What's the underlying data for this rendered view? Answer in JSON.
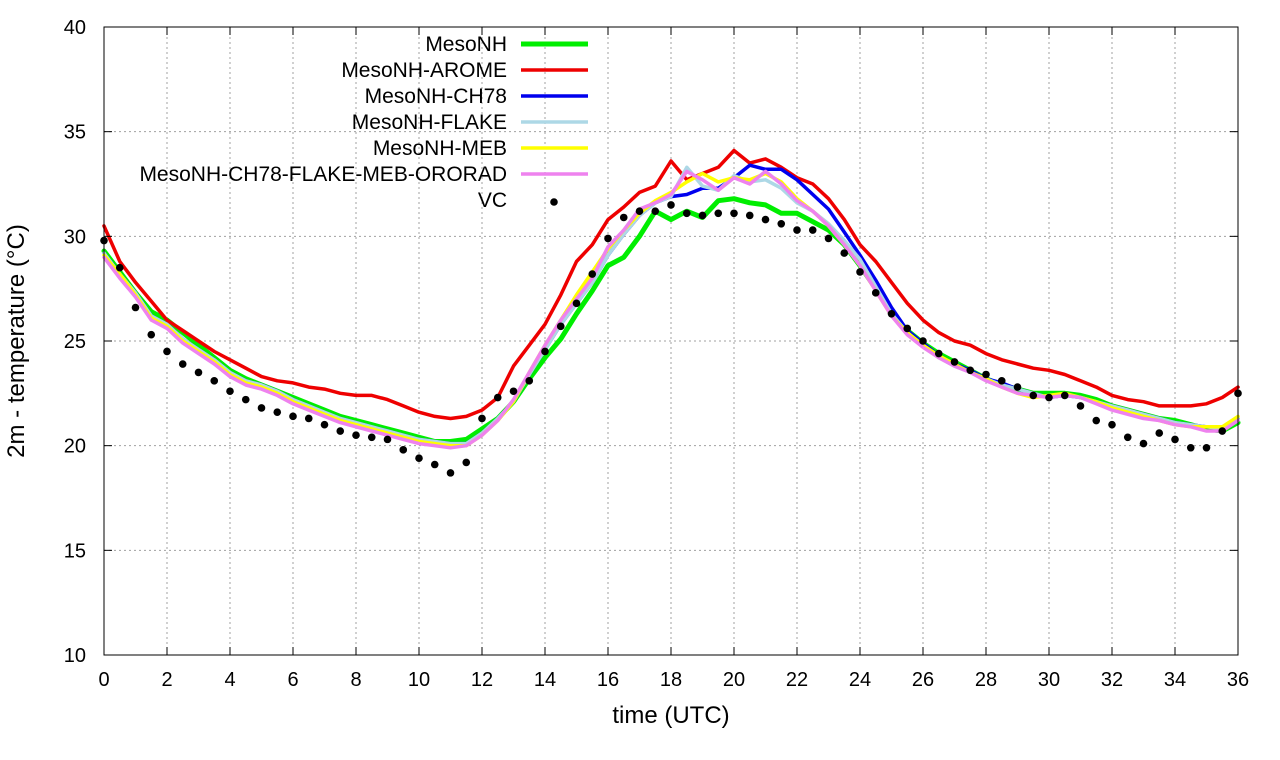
{
  "chart_data": {
    "type": "line",
    "xlabel": "time (UTC)",
    "ylabel": "2m - temperature (°C)",
    "xlim": [
      0,
      36
    ],
    "ylim": [
      10,
      40
    ],
    "xticks": [
      0,
      2,
      4,
      6,
      8,
      10,
      12,
      14,
      16,
      18,
      20,
      22,
      24,
      26,
      28,
      30,
      32,
      34,
      36
    ],
    "yticks": [
      10,
      15,
      20,
      25,
      30,
      35,
      40
    ],
    "grid": true,
    "legend_position": "top-left",
    "series": [
      {
        "name": "MesoNH",
        "color": "#00ee00",
        "style": "line",
        "x": [
          0,
          0.5,
          1,
          1.5,
          2,
          2.5,
          3,
          3.5,
          4,
          4.5,
          5,
          5.5,
          6,
          6.5,
          7,
          7.5,
          8,
          8.5,
          9,
          9.5,
          10,
          10.5,
          11,
          11.5,
          12,
          12.5,
          13,
          13.5,
          14,
          14.5,
          15,
          15.5,
          16,
          16.5,
          17,
          17.5,
          18,
          18.5,
          19,
          19.5,
          20,
          20.5,
          21,
          21.5,
          22,
          22.5,
          23,
          23.5,
          24,
          24.5,
          25,
          25.5,
          26,
          26.5,
          27,
          27.5,
          28,
          28.5,
          29,
          29.5,
          30,
          30.5,
          31,
          31.5,
          32,
          32.5,
          33,
          33.5,
          34,
          34.5,
          35,
          35.5,
          36
        ],
        "y": [
          29.3,
          28.3,
          27.3,
          26.4,
          26.0,
          25.4,
          24.8,
          24.2,
          23.6,
          23.2,
          22.9,
          22.6,
          22.3,
          22.0,
          21.7,
          21.4,
          21.2,
          21.0,
          20.8,
          20.6,
          20.4,
          20.2,
          20.2,
          20.3,
          20.8,
          21.3,
          22.1,
          23.2,
          24.2,
          25.1,
          26.3,
          27.4,
          28.6,
          29.0,
          30.0,
          31.2,
          30.8,
          31.2,
          30.9,
          31.7,
          31.8,
          31.6,
          31.5,
          31.1,
          31.1,
          30.7,
          30.3,
          29.6,
          28.6,
          27.5,
          26.3,
          25.5,
          24.9,
          24.4,
          24.0,
          23.6,
          23.2,
          22.9,
          22.7,
          22.5,
          22.5,
          22.5,
          22.4,
          22.2,
          21.9,
          21.7,
          21.5,
          21.3,
          21.2,
          21.0,
          20.8,
          20.7,
          21.1
        ]
      },
      {
        "name": "MesoNH-AROME",
        "color": "#ee0000",
        "style": "line",
        "x": [
          0,
          0.5,
          1,
          1.5,
          2,
          2.5,
          3,
          3.5,
          4,
          4.5,
          5,
          5.5,
          6,
          6.5,
          7,
          7.5,
          8,
          8.5,
          9,
          9.5,
          10,
          10.5,
          11,
          11.5,
          12,
          12.5,
          13,
          13.5,
          14,
          14.5,
          15,
          15.5,
          16,
          16.5,
          17,
          17.5,
          18,
          18.5,
          19,
          19.5,
          20,
          20.5,
          21,
          21.5,
          22,
          22.5,
          23,
          23.5,
          24,
          24.5,
          25,
          25.5,
          26,
          26.5,
          27,
          27.5,
          28,
          28.5,
          29,
          29.5,
          30,
          30.5,
          31,
          31.5,
          32,
          32.5,
          33,
          33.5,
          34,
          34.5,
          35,
          35.5,
          36
        ],
        "y": [
          30.5,
          28.8,
          27.8,
          26.9,
          26.0,
          25.5,
          25.0,
          24.5,
          24.1,
          23.7,
          23.3,
          23.1,
          23.0,
          22.8,
          22.7,
          22.5,
          22.4,
          22.4,
          22.2,
          21.9,
          21.6,
          21.4,
          21.3,
          21.4,
          21.7,
          22.3,
          23.8,
          24.8,
          25.8,
          27.2,
          28.8,
          29.6,
          30.8,
          31.4,
          32.1,
          32.4,
          33.6,
          32.7,
          33.0,
          33.3,
          34.1,
          33.5,
          33.7,
          33.3,
          32.8,
          32.5,
          31.8,
          30.8,
          29.6,
          28.8,
          27.8,
          26.8,
          26.0,
          25.4,
          25.0,
          24.8,
          24.4,
          24.1,
          23.9,
          23.7,
          23.6,
          23.4,
          23.1,
          22.8,
          22.4,
          22.2,
          22.1,
          21.9,
          21.9,
          21.9,
          22.0,
          22.3,
          22.8
        ]
      },
      {
        "name": "MesoNH-CH78",
        "color": "#0000ee",
        "style": "line",
        "x": [
          0,
          0.5,
          1,
          1.5,
          2,
          2.5,
          3,
          3.5,
          4,
          4.5,
          5,
          5.5,
          6,
          6.5,
          7,
          7.5,
          8,
          8.5,
          9,
          9.5,
          10,
          10.5,
          11,
          11.5,
          12,
          12.5,
          13,
          13.5,
          14,
          14.5,
          15,
          15.5,
          16,
          16.5,
          17,
          17.5,
          18,
          18.5,
          19,
          19.5,
          20,
          20.5,
          21,
          21.5,
          22,
          22.5,
          23,
          23.5,
          24,
          24.5,
          25,
          25.5,
          26,
          26.5,
          27,
          27.5,
          28,
          28.5,
          29,
          29.5,
          30,
          30.5,
          31,
          31.5,
          32,
          32.5,
          33,
          33.5,
          34,
          34.5,
          35,
          35.5,
          36
        ],
        "y": [
          29.2,
          28.2,
          27.3,
          26.2,
          25.8,
          25.1,
          24.6,
          24.1,
          23.5,
          23.1,
          22.9,
          22.6,
          22.2,
          21.9,
          21.6,
          21.3,
          21.1,
          20.9,
          20.7,
          20.5,
          20.3,
          20.2,
          20.1,
          20.1,
          20.6,
          21.3,
          22.1,
          23.4,
          24.6,
          25.8,
          26.8,
          27.8,
          29.1,
          30.1,
          31.0,
          31.6,
          31.9,
          32.0,
          32.3,
          32.3,
          32.8,
          33.4,
          33.2,
          33.2,
          32.7,
          32.0,
          31.3,
          30.2,
          29.1,
          27.9,
          26.6,
          25.5,
          24.9,
          24.3,
          23.9,
          23.6,
          23.2,
          23.0,
          22.7,
          22.5,
          22.3,
          22.4,
          22.3,
          22.1,
          21.9,
          21.7,
          21.5,
          21.3,
          21.1,
          21.0,
          20.9,
          20.8,
          21.3
        ]
      },
      {
        "name": "MesoNH-FLAKE",
        "color": "#add8e6",
        "style": "line",
        "x": [
          0,
          0.5,
          1,
          1.5,
          2,
          2.5,
          3,
          3.5,
          4,
          4.5,
          5,
          5.5,
          6,
          6.5,
          7,
          7.5,
          8,
          8.5,
          9,
          9.5,
          10,
          10.5,
          11,
          11.5,
          12,
          12.5,
          13,
          13.5,
          14,
          14.5,
          15,
          15.5,
          16,
          16.5,
          17,
          17.5,
          18,
          18.5,
          19,
          19.5,
          20,
          20.5,
          21,
          21.5,
          22,
          22.5,
          23,
          23.5,
          24,
          24.5,
          25,
          25.5,
          26,
          26.5,
          27,
          27.5,
          28,
          28.5,
          29,
          29.5,
          30,
          30.5,
          31,
          31.5,
          32,
          32.5,
          33,
          33.5,
          34,
          34.5,
          35,
          35.5,
          36
        ],
        "y": [
          29.2,
          28.2,
          27.3,
          26.2,
          25.8,
          25.1,
          24.6,
          24.1,
          23.5,
          23.1,
          22.9,
          22.6,
          22.2,
          21.9,
          21.6,
          21.3,
          21.1,
          20.9,
          20.7,
          20.5,
          20.3,
          20.2,
          20.1,
          20.1,
          20.6,
          21.3,
          22.1,
          23.4,
          24.6,
          25.8,
          26.8,
          27.8,
          29.1,
          30.1,
          31.0,
          31.6,
          31.9,
          33.3,
          32.4,
          32.2,
          32.9,
          32.6,
          32.7,
          32.3,
          31.6,
          31.2,
          30.6,
          29.8,
          28.9,
          27.6,
          26.3,
          25.4,
          24.8,
          24.2,
          23.8,
          23.5,
          23.2,
          22.9,
          22.7,
          22.5,
          22.3,
          22.4,
          22.3,
          22.1,
          21.9,
          21.7,
          21.5,
          21.3,
          21.1,
          21.0,
          20.9,
          20.8,
          21.3
        ]
      },
      {
        "name": "MesoNH-MEB",
        "color": "#ffff00",
        "style": "line",
        "x": [
          0,
          0.5,
          1,
          1.5,
          2,
          2.5,
          3,
          3.5,
          4,
          4.5,
          5,
          5.5,
          6,
          6.5,
          7,
          7.5,
          8,
          8.5,
          9,
          9.5,
          10,
          10.5,
          11,
          11.5,
          12,
          12.5,
          13,
          13.5,
          14,
          14.5,
          15,
          15.5,
          16,
          16.5,
          17,
          17.5,
          18,
          18.5,
          19,
          19.5,
          20,
          20.5,
          21,
          21.5,
          22,
          22.5,
          23,
          23.5,
          24,
          24.5,
          25,
          25.5,
          26,
          26.5,
          27,
          27.5,
          28,
          28.5,
          29,
          29.5,
          30,
          30.5,
          31,
          31.5,
          32,
          32.5,
          33,
          33.5,
          34,
          34.5,
          35,
          35.5,
          36
        ],
        "y": [
          29.1,
          28.2,
          27.2,
          26.1,
          25.7,
          25.0,
          24.5,
          24.0,
          23.4,
          23.0,
          22.8,
          22.5,
          22.1,
          21.8,
          21.5,
          21.2,
          21.0,
          20.8,
          20.6,
          20.4,
          20.2,
          20.1,
          20.0,
          20.0,
          20.5,
          21.2,
          22.1,
          23.5,
          24.8,
          26.0,
          27.2,
          28.3,
          29.4,
          30.3,
          31.1,
          31.7,
          32.1,
          32.6,
          33.0,
          32.6,
          32.8,
          32.7,
          33.0,
          32.6,
          31.8,
          31.2,
          30.5,
          29.6,
          28.6,
          27.4,
          26.2,
          25.4,
          24.8,
          24.3,
          23.9,
          23.5,
          23.2,
          22.8,
          22.5,
          22.3,
          22.4,
          22.5,
          22.3,
          22.1,
          21.8,
          21.6,
          21.4,
          21.2,
          21.0,
          20.9,
          20.9,
          20.9,
          21.4
        ]
      },
      {
        "name": "MesoNH-CH78-FLAKE-MEB-ORORAD",
        "color": "#ee82ee",
        "style": "line",
        "x": [
          0,
          0.5,
          1,
          1.5,
          2,
          2.5,
          3,
          3.5,
          4,
          4.5,
          5,
          5.5,
          6,
          6.5,
          7,
          7.5,
          8,
          8.5,
          9,
          9.5,
          10,
          10.5,
          11,
          11.5,
          12,
          12.5,
          13,
          13.5,
          14,
          14.5,
          15,
          15.5,
          16,
          16.5,
          17,
          17.5,
          18,
          18.5,
          19,
          19.5,
          20,
          20.5,
          21,
          21.5,
          22,
          22.5,
          23,
          23.5,
          24,
          24.5,
          25,
          25.5,
          26,
          26.5,
          27,
          27.5,
          28,
          28.5,
          29,
          29.5,
          30,
          30.5,
          31,
          31.5,
          32,
          32.5,
          33,
          33.5,
          34,
          34.5,
          35,
          35.5,
          36
        ],
        "y": [
          29.0,
          28.0,
          27.1,
          26.0,
          25.6,
          24.9,
          24.4,
          23.9,
          23.3,
          22.9,
          22.7,
          22.4,
          22.0,
          21.7,
          21.4,
          21.1,
          20.9,
          20.7,
          20.5,
          20.3,
          20.1,
          20.0,
          19.9,
          20.0,
          20.5,
          21.2,
          22.2,
          23.5,
          24.8,
          26.0,
          27.0,
          28.0,
          29.5,
          30.3,
          31.3,
          31.6,
          32.0,
          33.1,
          32.7,
          32.2,
          32.8,
          32.5,
          33.1,
          32.5,
          31.7,
          31.2,
          30.5,
          29.6,
          28.6,
          27.4,
          26.2,
          25.3,
          24.7,
          24.2,
          23.8,
          23.5,
          23.1,
          22.8,
          22.5,
          22.4,
          22.3,
          22.4,
          22.3,
          22.0,
          21.7,
          21.5,
          21.3,
          21.2,
          21.0,
          20.9,
          20.7,
          20.7,
          21.2
        ]
      },
      {
        "name": "VC",
        "color": "#000000",
        "style": "points",
        "x": [
          0,
          0.5,
          1,
          1.5,
          2,
          2.5,
          3,
          3.5,
          4,
          4.5,
          5,
          5.5,
          6,
          6.5,
          7,
          7.5,
          8,
          8.5,
          9,
          9.5,
          10,
          10.5,
          11,
          11.5,
          12,
          12.5,
          13,
          13.5,
          14,
          14.5,
          15,
          15.5,
          16,
          16.5,
          17,
          17.5,
          18,
          18.5,
          19,
          19.5,
          20,
          20.5,
          21,
          21.5,
          22,
          22.5,
          23,
          23.5,
          24,
          24.5,
          25,
          25.5,
          26,
          26.5,
          27,
          27.5,
          28,
          28.5,
          29,
          29.5,
          30,
          30.5,
          31,
          31.5,
          32,
          32.5,
          33,
          33.5,
          34,
          34.5,
          35,
          35.5,
          36
        ],
        "y": [
          29.8,
          28.5,
          26.6,
          25.3,
          24.5,
          23.9,
          23.5,
          23.1,
          22.6,
          22.2,
          21.8,
          21.6,
          21.4,
          21.3,
          21.0,
          20.7,
          20.5,
          20.4,
          20.3,
          19.8,
          19.4,
          19.1,
          18.7,
          19.2,
          21.3,
          22.3,
          22.6,
          23.1,
          24.5,
          25.7,
          26.8,
          28.2,
          29.9,
          30.9,
          31.2,
          31.2,
          31.5,
          31.1,
          31.0,
          31.1,
          31.1,
          31.0,
          30.8,
          30.6,
          30.3,
          30.3,
          29.9,
          29.2,
          28.3,
          27.3,
          26.3,
          25.6,
          25.0,
          24.4,
          24.0,
          23.6,
          23.4,
          23.1,
          22.8,
          22.4,
          22.3,
          22.4,
          21.9,
          21.2,
          21.0,
          20.4,
          20.1,
          20.6,
          20.3,
          19.9,
          19.9,
          20.7,
          22.5
        ]
      }
    ]
  }
}
